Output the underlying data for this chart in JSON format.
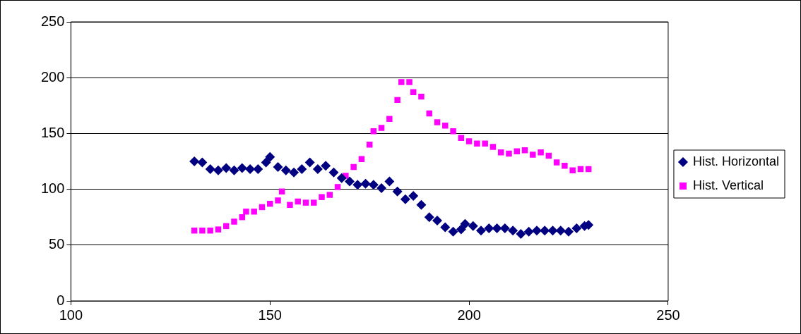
{
  "chart_data": {
    "type": "scatter",
    "xlim": [
      100,
      250
    ],
    "xticks": [
      100,
      150,
      200,
      250
    ],
    "ylim": [
      0,
      250
    ],
    "yticks": [
      0,
      50,
      100,
      150,
      200,
      250
    ],
    "grid": "y",
    "legend": "right",
    "series": [
      {
        "name": "Hist. Horizontal",
        "color": "#000080",
        "marker": "diamond",
        "x": [
          131,
          133,
          135,
          137,
          139,
          141,
          143,
          145,
          147,
          149,
          150,
          152,
          154,
          156,
          158,
          160,
          162,
          164,
          166,
          168,
          170,
          172,
          174,
          176,
          178,
          180,
          182,
          184,
          186,
          188,
          190,
          192,
          194,
          196,
          198,
          199,
          201,
          203,
          205,
          207,
          209,
          211,
          213,
          215,
          217,
          219,
          221,
          223,
          225,
          227,
          229,
          230
        ],
        "values": [
          125,
          124,
          118,
          117,
          119,
          117,
          119,
          118,
          118,
          124,
          129,
          120,
          117,
          115,
          118,
          124,
          118,
          121,
          115,
          110,
          107,
          104,
          105,
          104,
          101,
          107,
          98,
          91,
          94,
          86,
          75,
          72,
          66,
          62,
          64,
          69,
          67,
          63,
          65,
          65,
          65,
          63,
          60,
          62,
          63,
          63,
          63,
          63,
          62,
          65,
          67,
          68
        ]
      },
      {
        "name": "Hist. Vertical",
        "color": "#ff00ff",
        "marker": "square",
        "x": [
          131,
          133,
          135,
          137,
          139,
          141,
          143,
          144,
          146,
          148,
          150,
          152,
          153,
          155,
          157,
          159,
          161,
          163,
          165,
          167,
          169,
          171,
          173,
          175,
          176,
          178,
          180,
          182,
          183,
          185,
          186,
          188,
          190,
          192,
          194,
          196,
          198,
          200,
          202,
          204,
          206,
          208,
          210,
          212,
          214,
          216,
          218,
          220,
          222,
          224,
          226,
          228,
          230
        ],
        "values": [
          63,
          63,
          63,
          64,
          67,
          71,
          75,
          80,
          80,
          84,
          87,
          90,
          98,
          86,
          89,
          88,
          88,
          93,
          95,
          102,
          112,
          120,
          127,
          140,
          152,
          155,
          163,
          180,
          196,
          196,
          187,
          183,
          168,
          160,
          157,
          152,
          146,
          143,
          141,
          141,
          138,
          133,
          132,
          134,
          135,
          131,
          133,
          130,
          124,
          121,
          117,
          118,
          118
        ]
      }
    ]
  }
}
